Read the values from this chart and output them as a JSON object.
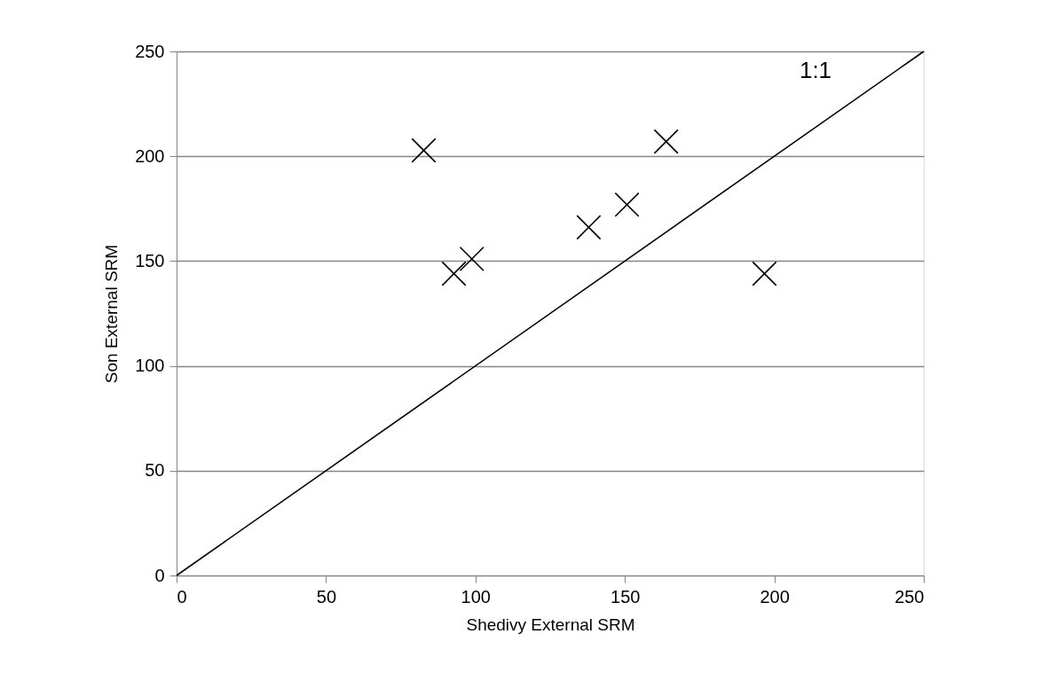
{
  "chart_data": {
    "type": "scatter",
    "xlabel": "Shedivy External SRM",
    "ylabel": "Son External SRM",
    "xlim": [
      0,
      250
    ],
    "xticks": [
      0,
      50,
      100,
      150,
      200,
      250
    ],
    "ylim": [
      0,
      250
    ],
    "yticks": [
      0,
      50,
      100,
      150,
      200,
      250
    ],
    "grid": "y",
    "series": [
      {
        "marker": "cross",
        "color": "#000000",
        "x": [
          82.7,
          92.8,
          98.8,
          137.9,
          150.7,
          163.8,
          196.7
        ],
        "values": [
          202.8,
          144,
          151,
          166.1,
          176.9,
          207,
          144
        ]
      },
      {
        "type": "line",
        "marker": "none",
        "color": "#000000",
        "x": [
          0,
          250
        ],
        "values": [
          0,
          250
        ]
      }
    ],
    "annotations": [
      "1:1"
    ]
  }
}
